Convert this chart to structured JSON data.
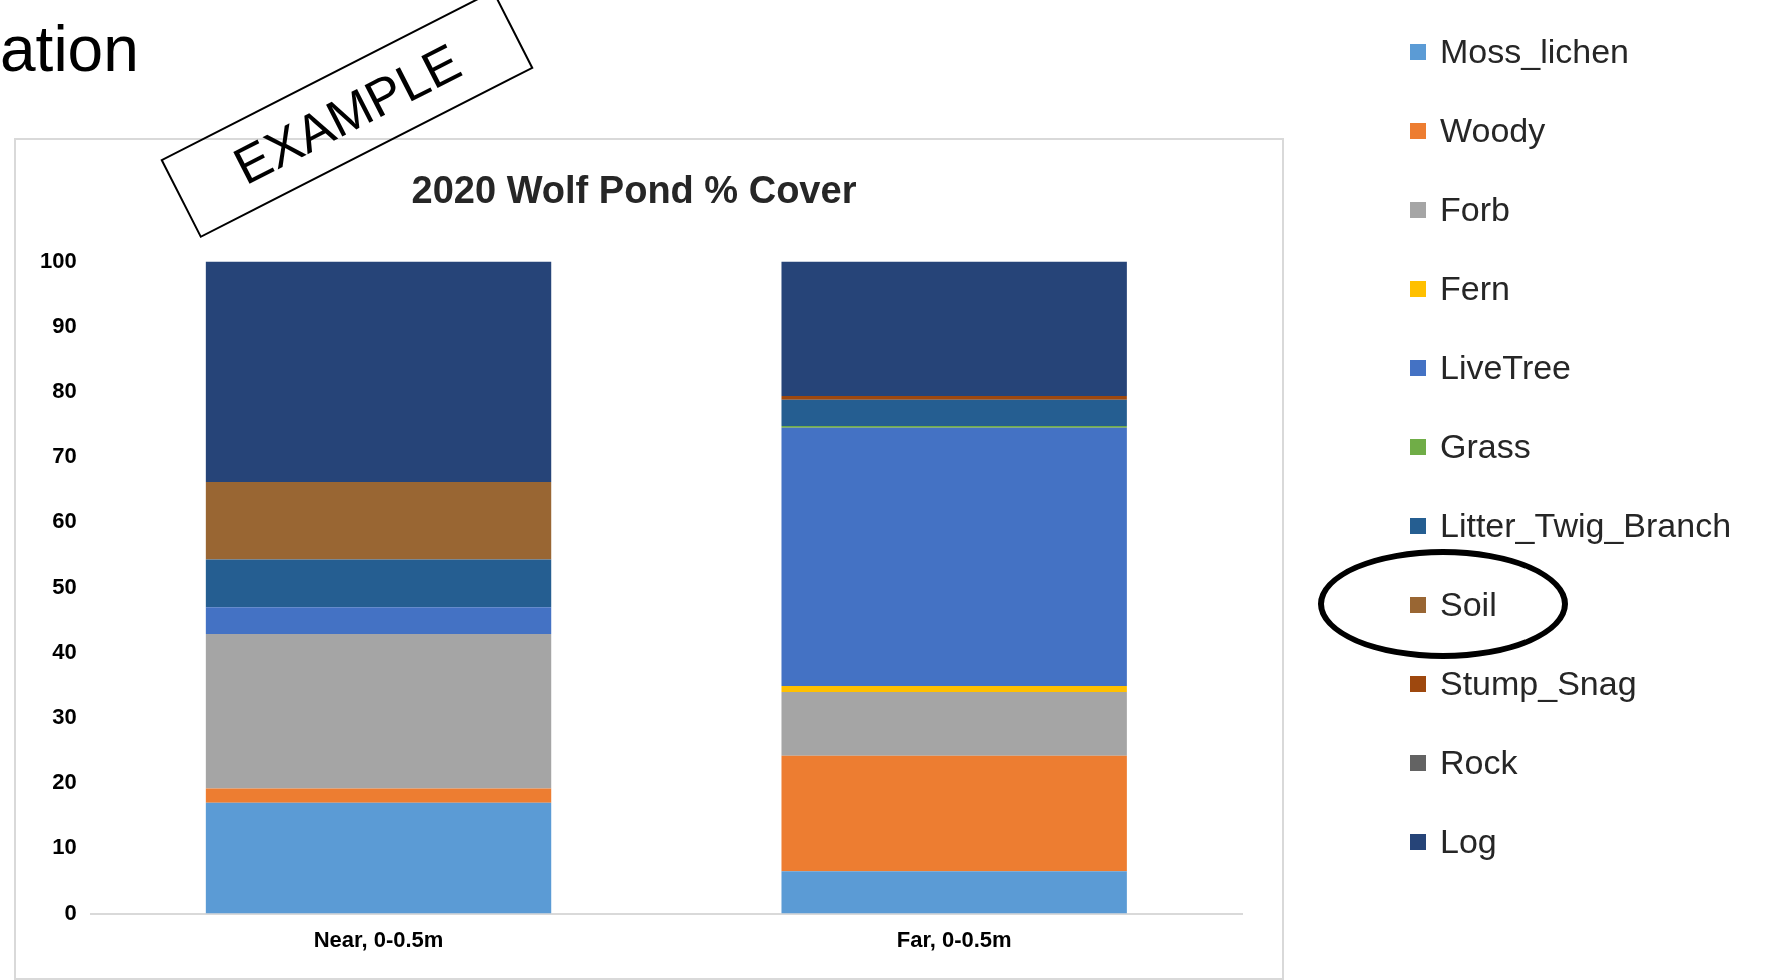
{
  "chart_data": {
    "type": "bar",
    "title": "2020 Wolf Pond % Cover",
    "stacked": true,
    "categories": [
      "Near, 0-0.5m",
      "Far, 0-0.5m"
    ],
    "series": [
      {
        "name": "Moss_lichen",
        "color": "#5b9bd5",
        "values": [
          17,
          6.5
        ]
      },
      {
        "name": "Woody",
        "color": "#ed7d31",
        "values": [
          2.2,
          17.7
        ]
      },
      {
        "name": "Forb",
        "color": "#a5a5a5",
        "values": [
          23.7,
          9.8
        ]
      },
      {
        "name": "Fern",
        "color": "#ffc000",
        "values": [
          0,
          0.9
        ]
      },
      {
        "name": "LiveTree",
        "color": "#4472c4",
        "values": [
          4.1,
          39.6
        ]
      },
      {
        "name": "Grass",
        "color": "#70ad47",
        "values": [
          0,
          0.3
        ]
      },
      {
        "name": "Litter_Twig_Branch",
        "color": "#255e91",
        "values": [
          7.3,
          4
        ]
      },
      {
        "name": "Soil",
        "color": "#996633",
        "values": [
          11.9,
          0
        ]
      },
      {
        "name": "Stump_Snag",
        "color": "#9e480e",
        "values": [
          0,
          0.6
        ]
      },
      {
        "name": "Rock",
        "color": "#636363",
        "values": [
          0,
          0
        ]
      },
      {
        "name": "Log",
        "color": "#264478",
        "values": [
          33.8,
          20.6
        ]
      }
    ],
    "ylim": [
      0,
      100
    ],
    "yticks": [
      0,
      10,
      20,
      30,
      40,
      50,
      60,
      70,
      80,
      90,
      100
    ],
    "grid": false,
    "legend": "right",
    "annotations": [
      "ation",
      "EXAMPLE"
    ]
  }
}
